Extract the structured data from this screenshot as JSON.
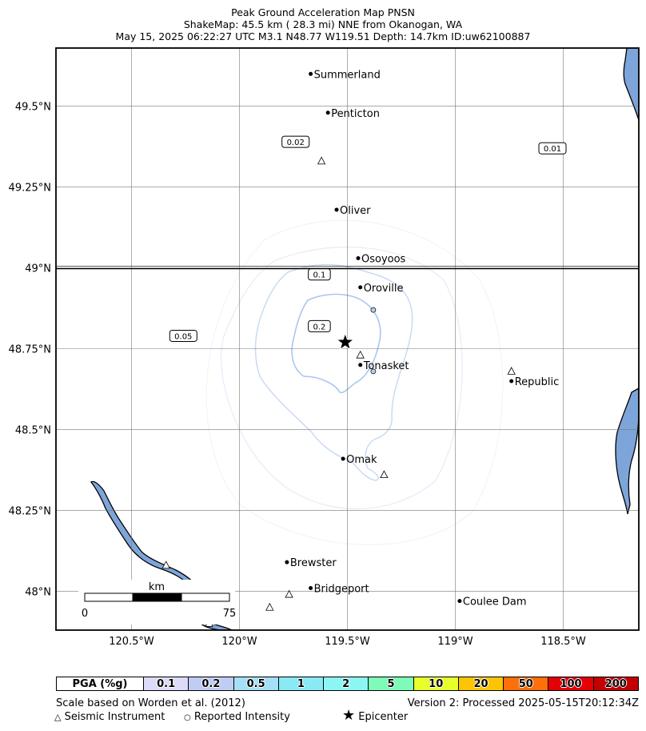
{
  "title": {
    "line1": "Peak Ground Acceleration Map PNSN",
    "line2": "ShakeMap: 45.5 km (  28.3 mi) NNE from Okanogan, WA",
    "line3": "May 15, 2025 06:22:27 UTC M3.1 N48.77 W119.51 Depth: 14.7km ID:uw62100887"
  },
  "map": {
    "lon_range": [
      -120.85,
      -118.15
    ],
    "lat_range": [
      47.88,
      49.68
    ],
    "x_ticks": [
      {
        "value": -120.5,
        "label": "120.5°W"
      },
      {
        "value": -120.0,
        "label": "120°W"
      },
      {
        "value": -119.5,
        "label": "119.5°W"
      },
      {
        "value": -119.0,
        "label": "119°W"
      },
      {
        "value": -118.5,
        "label": "118.5°W"
      }
    ],
    "y_ticks": [
      {
        "value": 49.5,
        "label": "49.5°N"
      },
      {
        "value": 49.25,
        "label": "49.25°N"
      },
      {
        "value": 49.0,
        "label": "49°N"
      },
      {
        "value": 48.75,
        "label": "48.75°N"
      },
      {
        "value": 48.5,
        "label": "48.5°N"
      },
      {
        "value": 48.25,
        "label": "48.25°N"
      },
      {
        "value": 48.0,
        "label": "48°N"
      }
    ],
    "border_lat": 49.0,
    "epicenter": {
      "lon": -119.51,
      "lat": 48.77
    },
    "cities": [
      {
        "name": "Summerland",
        "lon": -119.67,
        "lat": 49.6
      },
      {
        "name": "Penticton",
        "lon": -119.59,
        "lat": 49.48
      },
      {
        "name": "Oliver",
        "lon": -119.55,
        "lat": 49.18
      },
      {
        "name": "Osoyoos",
        "lon": -119.45,
        "lat": 49.03
      },
      {
        "name": "Oroville",
        "lon": -119.44,
        "lat": 48.94
      },
      {
        "name": "Tonasket",
        "lon": -119.44,
        "lat": 48.7
      },
      {
        "name": "Republic",
        "lon": -118.74,
        "lat": 48.65
      },
      {
        "name": "Omak",
        "lon": -119.52,
        "lat": 48.41
      },
      {
        "name": "Brewster",
        "lon": -119.78,
        "lat": 48.09
      },
      {
        "name": "Bridgeport",
        "lon": -119.67,
        "lat": 48.01
      },
      {
        "name": "Coulee Dam",
        "lon": -118.98,
        "lat": 47.97
      }
    ],
    "instruments": [
      {
        "lon": -119.62,
        "lat": 49.33
      },
      {
        "lon": -119.44,
        "lat": 48.73
      },
      {
        "lon": -118.74,
        "lat": 48.68
      },
      {
        "lon": -119.33,
        "lat": 48.36
      },
      {
        "lon": -120.34,
        "lat": 48.08
      },
      {
        "lon": -119.77,
        "lat": 47.99
      },
      {
        "lon": -119.86,
        "lat": 47.95
      },
      {
        "lon": -120.14,
        "lat": 47.9
      }
    ],
    "intensity_reports": [
      {
        "lon": -119.38,
        "lat": 48.87
      },
      {
        "lon": -119.38,
        "lat": 48.68
      }
    ],
    "contour_labels": [
      {
        "text": "0.02",
        "lon": -119.74,
        "lat": 49.39
      },
      {
        "text": "0.01",
        "lon": -118.55,
        "lat": 49.37
      },
      {
        "text": "0.1",
        "lon": -119.63,
        "lat": 48.98
      },
      {
        "text": "0.2",
        "lon": -119.63,
        "lat": 48.82
      },
      {
        "text": "0.05",
        "lon": -120.26,
        "lat": 48.79
      }
    ],
    "scale_bar": {
      "label": "km",
      "min": "0",
      "max": "75"
    }
  },
  "legend": {
    "header": "PGA (%g)",
    "bins": [
      {
        "label": "0.1",
        "color": "#dcdcfa"
      },
      {
        "label": "0.2",
        "color": "#bfcdf5"
      },
      {
        "label": "0.5",
        "color": "#a6e0f7"
      },
      {
        "label": "1",
        "color": "#89eaf5"
      },
      {
        "label": "2",
        "color": "#8cf7f2"
      },
      {
        "label": "5",
        "color": "#7efab9"
      },
      {
        "label": "10",
        "color": "#e8ff2c"
      },
      {
        "label": "20",
        "color": "#fcc503"
      },
      {
        "label": "50",
        "color": "#fe6f0a"
      },
      {
        "label": "100",
        "color": "#e40106"
      },
      {
        "label": "200",
        "color": "#c20000"
      }
    ]
  },
  "footer": {
    "scale_note": "Scale based on Worden et al. (2012)",
    "version": "Version 2: Processed 2025-05-15T20:12:34Z",
    "instrument_key": "Seismic Instrument",
    "reported_key": "Reported Intensity",
    "epicenter_key": "Epicenter"
  },
  "colors": {
    "water": "#7ea5d9",
    "contour_light": "#d6e4f6",
    "contour_mid": "#b8d0f0",
    "contour_inner": "#9dbff0"
  }
}
